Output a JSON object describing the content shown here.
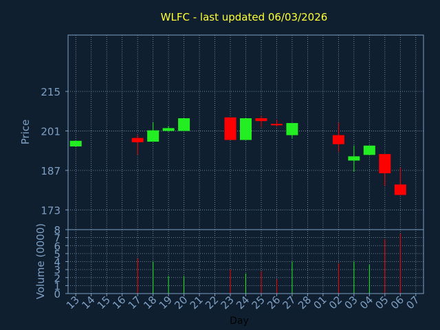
{
  "chart_data": {
    "type": "candlestick",
    "title": "WLFC - last updated 06/03/2026",
    "xlabel": "Day",
    "ylabel": "Price",
    "volume_label": "Volume (0000)",
    "grid": true,
    "ylim": [
      166,
      235
    ],
    "y_ticks": [
      173,
      187,
      201,
      215
    ],
    "volume_ylim": [
      0,
      8
    ],
    "volume_ticks": [
      0,
      1,
      2,
      3,
      4,
      5,
      6,
      7,
      8
    ],
    "days": [
      "13",
      "14",
      "15",
      "16",
      "17",
      "18",
      "19",
      "20",
      "21",
      "22",
      "23",
      "24",
      "25",
      "26",
      "27",
      "28",
      "01",
      "02",
      "03",
      "04",
      "05",
      "06",
      "07"
    ],
    "candles": [
      {
        "day": "13",
        "open": 195.5,
        "close": 197.5,
        "high": 197.5,
        "low": 195.5,
        "volume": 0
      },
      {
        "day": "17",
        "open": 198.5,
        "close": 197.0,
        "high": 199.5,
        "low": 192.5,
        "volume": 4.4
      },
      {
        "day": "18",
        "open": 197.2,
        "close": 201.2,
        "high": 204.0,
        "low": 197.2,
        "volume": 4.0
      },
      {
        "day": "19",
        "open": 201.0,
        "close": 202.0,
        "high": 202.8,
        "low": 200.8,
        "volume": 2.2
      },
      {
        "day": "20",
        "open": 201.0,
        "close": 205.5,
        "high": 205.5,
        "low": 201.0,
        "volume": 2.2
      },
      {
        "day": "23",
        "open": 205.8,
        "close": 197.8,
        "high": 205.8,
        "low": 197.8,
        "volume": 3.0
      },
      {
        "day": "24",
        "open": 197.8,
        "close": 205.5,
        "high": 205.5,
        "low": 197.8,
        "volume": 2.5
      },
      {
        "day": "25",
        "open": 205.5,
        "close": 204.5,
        "high": 206.5,
        "low": 202.3,
        "volume": 2.8
      },
      {
        "day": "26",
        "open": 203.5,
        "close": 203.0,
        "high": 205.0,
        "low": 202.5,
        "volume": 1.8
      },
      {
        "day": "27",
        "open": 199.5,
        "close": 203.8,
        "high": 203.8,
        "low": 198.5,
        "volume": 4.0
      },
      {
        "day": "02",
        "open": 199.5,
        "close": 196.3,
        "high": 204.0,
        "low": 193.5,
        "volume": 3.8
      },
      {
        "day": "03",
        "open": 190.5,
        "close": 192.0,
        "high": 195.8,
        "low": 186.5,
        "volume": 4.0
      },
      {
        "day": "04",
        "open": 192.5,
        "close": 195.8,
        "high": 195.8,
        "low": 192.5,
        "volume": 3.6
      },
      {
        "day": "05",
        "open": 192.8,
        "close": 186.0,
        "high": 192.8,
        "low": 181.5,
        "volume": 6.8
      },
      {
        "day": "06",
        "open": 182.0,
        "close": 178.3,
        "high": 188.0,
        "low": 178.3,
        "volume": 7.5
      }
    ],
    "colors": {
      "background": "#0f1f2f",
      "plot_background": "#0f1f2f",
      "axis": "#7ea0c4",
      "grid": "#8aa0b8",
      "up": "#22ee22",
      "down": "#ff0000",
      "title": "#ffff33"
    }
  }
}
